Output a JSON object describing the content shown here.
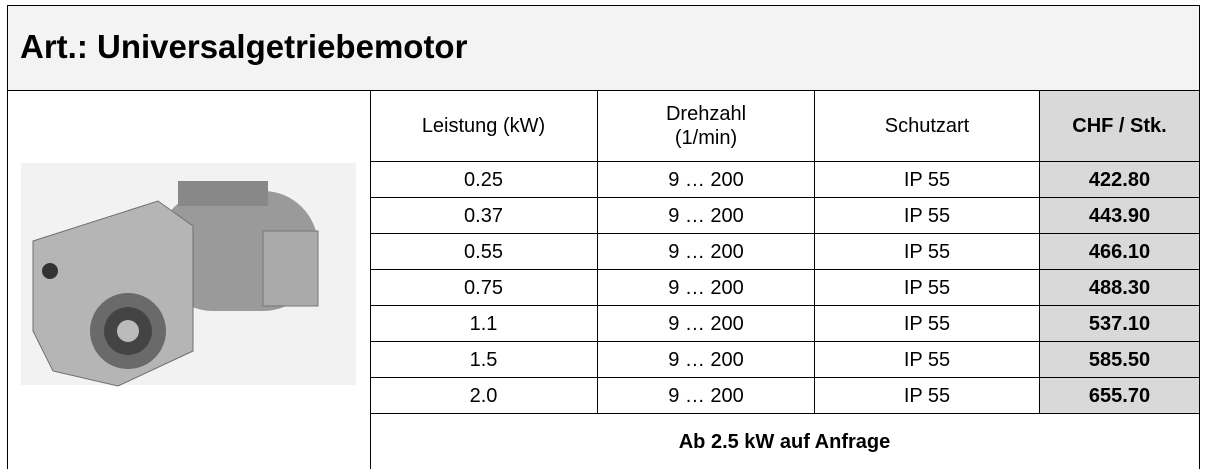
{
  "header": {
    "title": "Art.: Universalgetriebemotor"
  },
  "table": {
    "columns": [
      "Leistung (kW)",
      "Drehzahl\n(1/min)",
      "Schutzart",
      "CHF / Stk."
    ],
    "rows": [
      [
        "0.25",
        "9 … 200",
        "IP 55",
        "422.80"
      ],
      [
        "0.37",
        "9 … 200",
        "IP 55",
        "443.90"
      ],
      [
        "0.55",
        "9 … 200",
        "IP 55",
        "466.10"
      ],
      [
        "0.75",
        "9 … 200",
        "IP 55",
        "488.30"
      ],
      [
        "1.1",
        "9 … 200",
        "IP 55",
        "537.10"
      ],
      [
        "1.5",
        "9 … 200",
        "IP 55",
        "585.50"
      ],
      [
        "2.0",
        "9 … 200",
        "IP 55",
        "655.70"
      ]
    ],
    "footer": "Ab 2.5 kW auf Anfrage"
  }
}
